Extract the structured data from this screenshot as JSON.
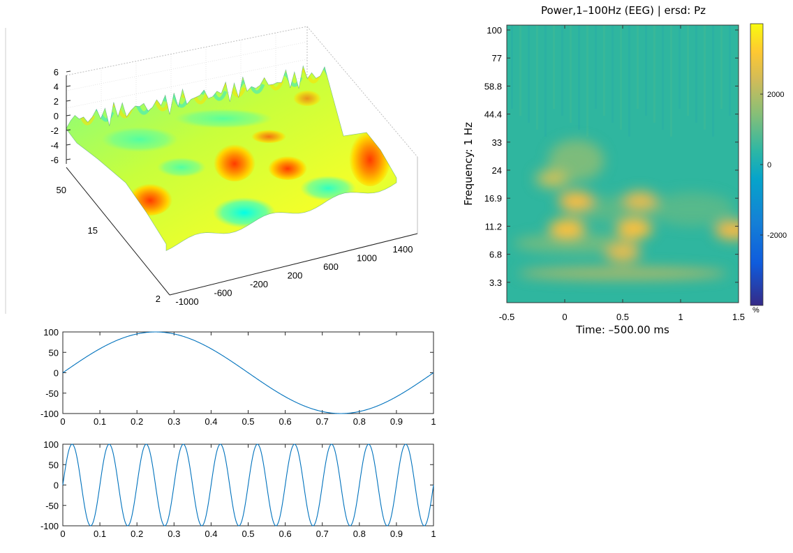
{
  "chart_data": [
    {
      "type": "surface",
      "x_ticks": [
        "-1000",
        "-600",
        "-200",
        "200",
        "600",
        "1000",
        "1400"
      ],
      "y_ticks": [
        "2",
        "15",
        "50"
      ],
      "z_ticks": [
        "6",
        "4",
        "2",
        "0",
        "-2",
        "-4",
        "-6"
      ],
      "zlim": [
        -6,
        6
      ],
      "colormap": "jet",
      "peaks": [
        {
          "time": -850,
          "freq": 15,
          "z": 5.5
        },
        {
          "time": 50,
          "freq": 22,
          "z": 5.0
        },
        {
          "time": 600,
          "freq": 12,
          "z": 4.2
        },
        {
          "time": 1250,
          "freq": 20,
          "z": 6.0
        }
      ]
    },
    {
      "type": "heatmap",
      "title": "Power,1–100Hz (EEG) | ersd: Pz",
      "xlabel": "Time: –500.00 ms",
      "ylabel": "Frequency: 1 Hz",
      "x_ticks": [
        "-0.5",
        "0",
        "0.5",
        "1",
        "1.5"
      ],
      "xlim": [
        -0.5,
        1.5
      ],
      "y_ticks": [
        "100",
        "77",
        "58.8",
        "44.4",
        "33",
        "24",
        "16.9",
        "11.2",
        "6.8",
        "3.3"
      ],
      "colorbar": {
        "ticks": [
          "2000",
          "0",
          "-2000"
        ],
        "unit": "%",
        "range": [
          -4000,
          4000
        ],
        "colormap": "parula"
      },
      "hotspots": [
        {
          "time": 0.1,
          "freq_index": 2.4,
          "value": 2600
        },
        {
          "time": 0.02,
          "freq_index": 1.4,
          "value": 3000
        },
        {
          "time": 0.6,
          "freq_index": 1.4,
          "value": 3300
        },
        {
          "time": 0.65,
          "freq_index": 2.4,
          "value": 2200
        },
        {
          "time": 0.5,
          "freq_index": 0.55,
          "value": 1800
        },
        {
          "time": 1.45,
          "freq_index": 1.35,
          "value": 2300
        },
        {
          "time": -0.1,
          "freq_index": 3.2,
          "value": 1200
        }
      ]
    },
    {
      "type": "line",
      "x_ticks": [
        "0",
        "0.1",
        "0.2",
        "0.3",
        "0.4",
        "0.5",
        "0.6",
        "0.7",
        "0.8",
        "0.9",
        "1"
      ],
      "y_ticks": [
        "100",
        "50",
        "0",
        "-50",
        "-100"
      ],
      "xlim": [
        0,
        1
      ],
      "ylim": [
        -100,
        100
      ],
      "series": [
        {
          "function": "100*sin(2*pi*1*t)",
          "frequency": 1,
          "amplitude": 100
        }
      ]
    },
    {
      "type": "line",
      "x_ticks": [
        "0",
        "0.1",
        "0.2",
        "0.3",
        "0.4",
        "0.5",
        "0.6",
        "0.7",
        "0.8",
        "0.9",
        "1"
      ],
      "y_ticks": [
        "100",
        "50",
        "0",
        "-50",
        "-100"
      ],
      "xlim": [
        0,
        1
      ],
      "ylim": [
        -100,
        100
      ],
      "series": [
        {
          "function": "100*sin(2*pi*10*t)",
          "frequency": 10,
          "amplitude": 100
        }
      ]
    }
  ]
}
